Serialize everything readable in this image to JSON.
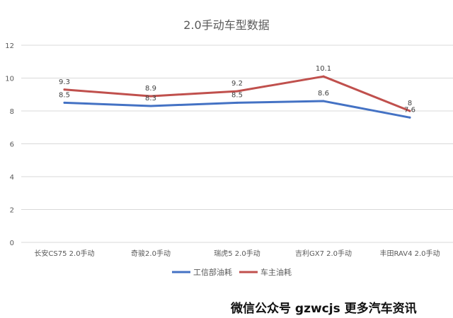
{
  "chart_data": {
    "type": "line",
    "title": "2.0手动车型数据",
    "categories": [
      "长安CS75 2.0手动",
      "奇骏2.0手动",
      "瑞虎5 2.0手动",
      "吉利GX7 2.0手动",
      "丰田RAV4 2.0手动"
    ],
    "series": [
      {
        "name": "工信部油耗",
        "values": [
          8.5,
          8.3,
          8.5,
          8.6,
          7.6
        ],
        "labels": [
          "8.5",
          "8.3",
          "8.5",
          "8.6",
          "7.6"
        ],
        "color": "#4472c4"
      },
      {
        "name": "车主油耗",
        "values": [
          9.3,
          8.9,
          9.2,
          10.1,
          8
        ],
        "labels": [
          "9.3",
          "8.9",
          "9.2",
          "10.1",
          "8"
        ],
        "color": "#c0504d"
      }
    ],
    "ylim": [
      0,
      12
    ],
    "yticks": [
      0,
      2,
      4,
      6,
      8,
      10,
      12
    ],
    "grid": true,
    "legend_position": "bottom"
  },
  "watermark": "微信公众号 gzwcjs 更多汽车资讯"
}
